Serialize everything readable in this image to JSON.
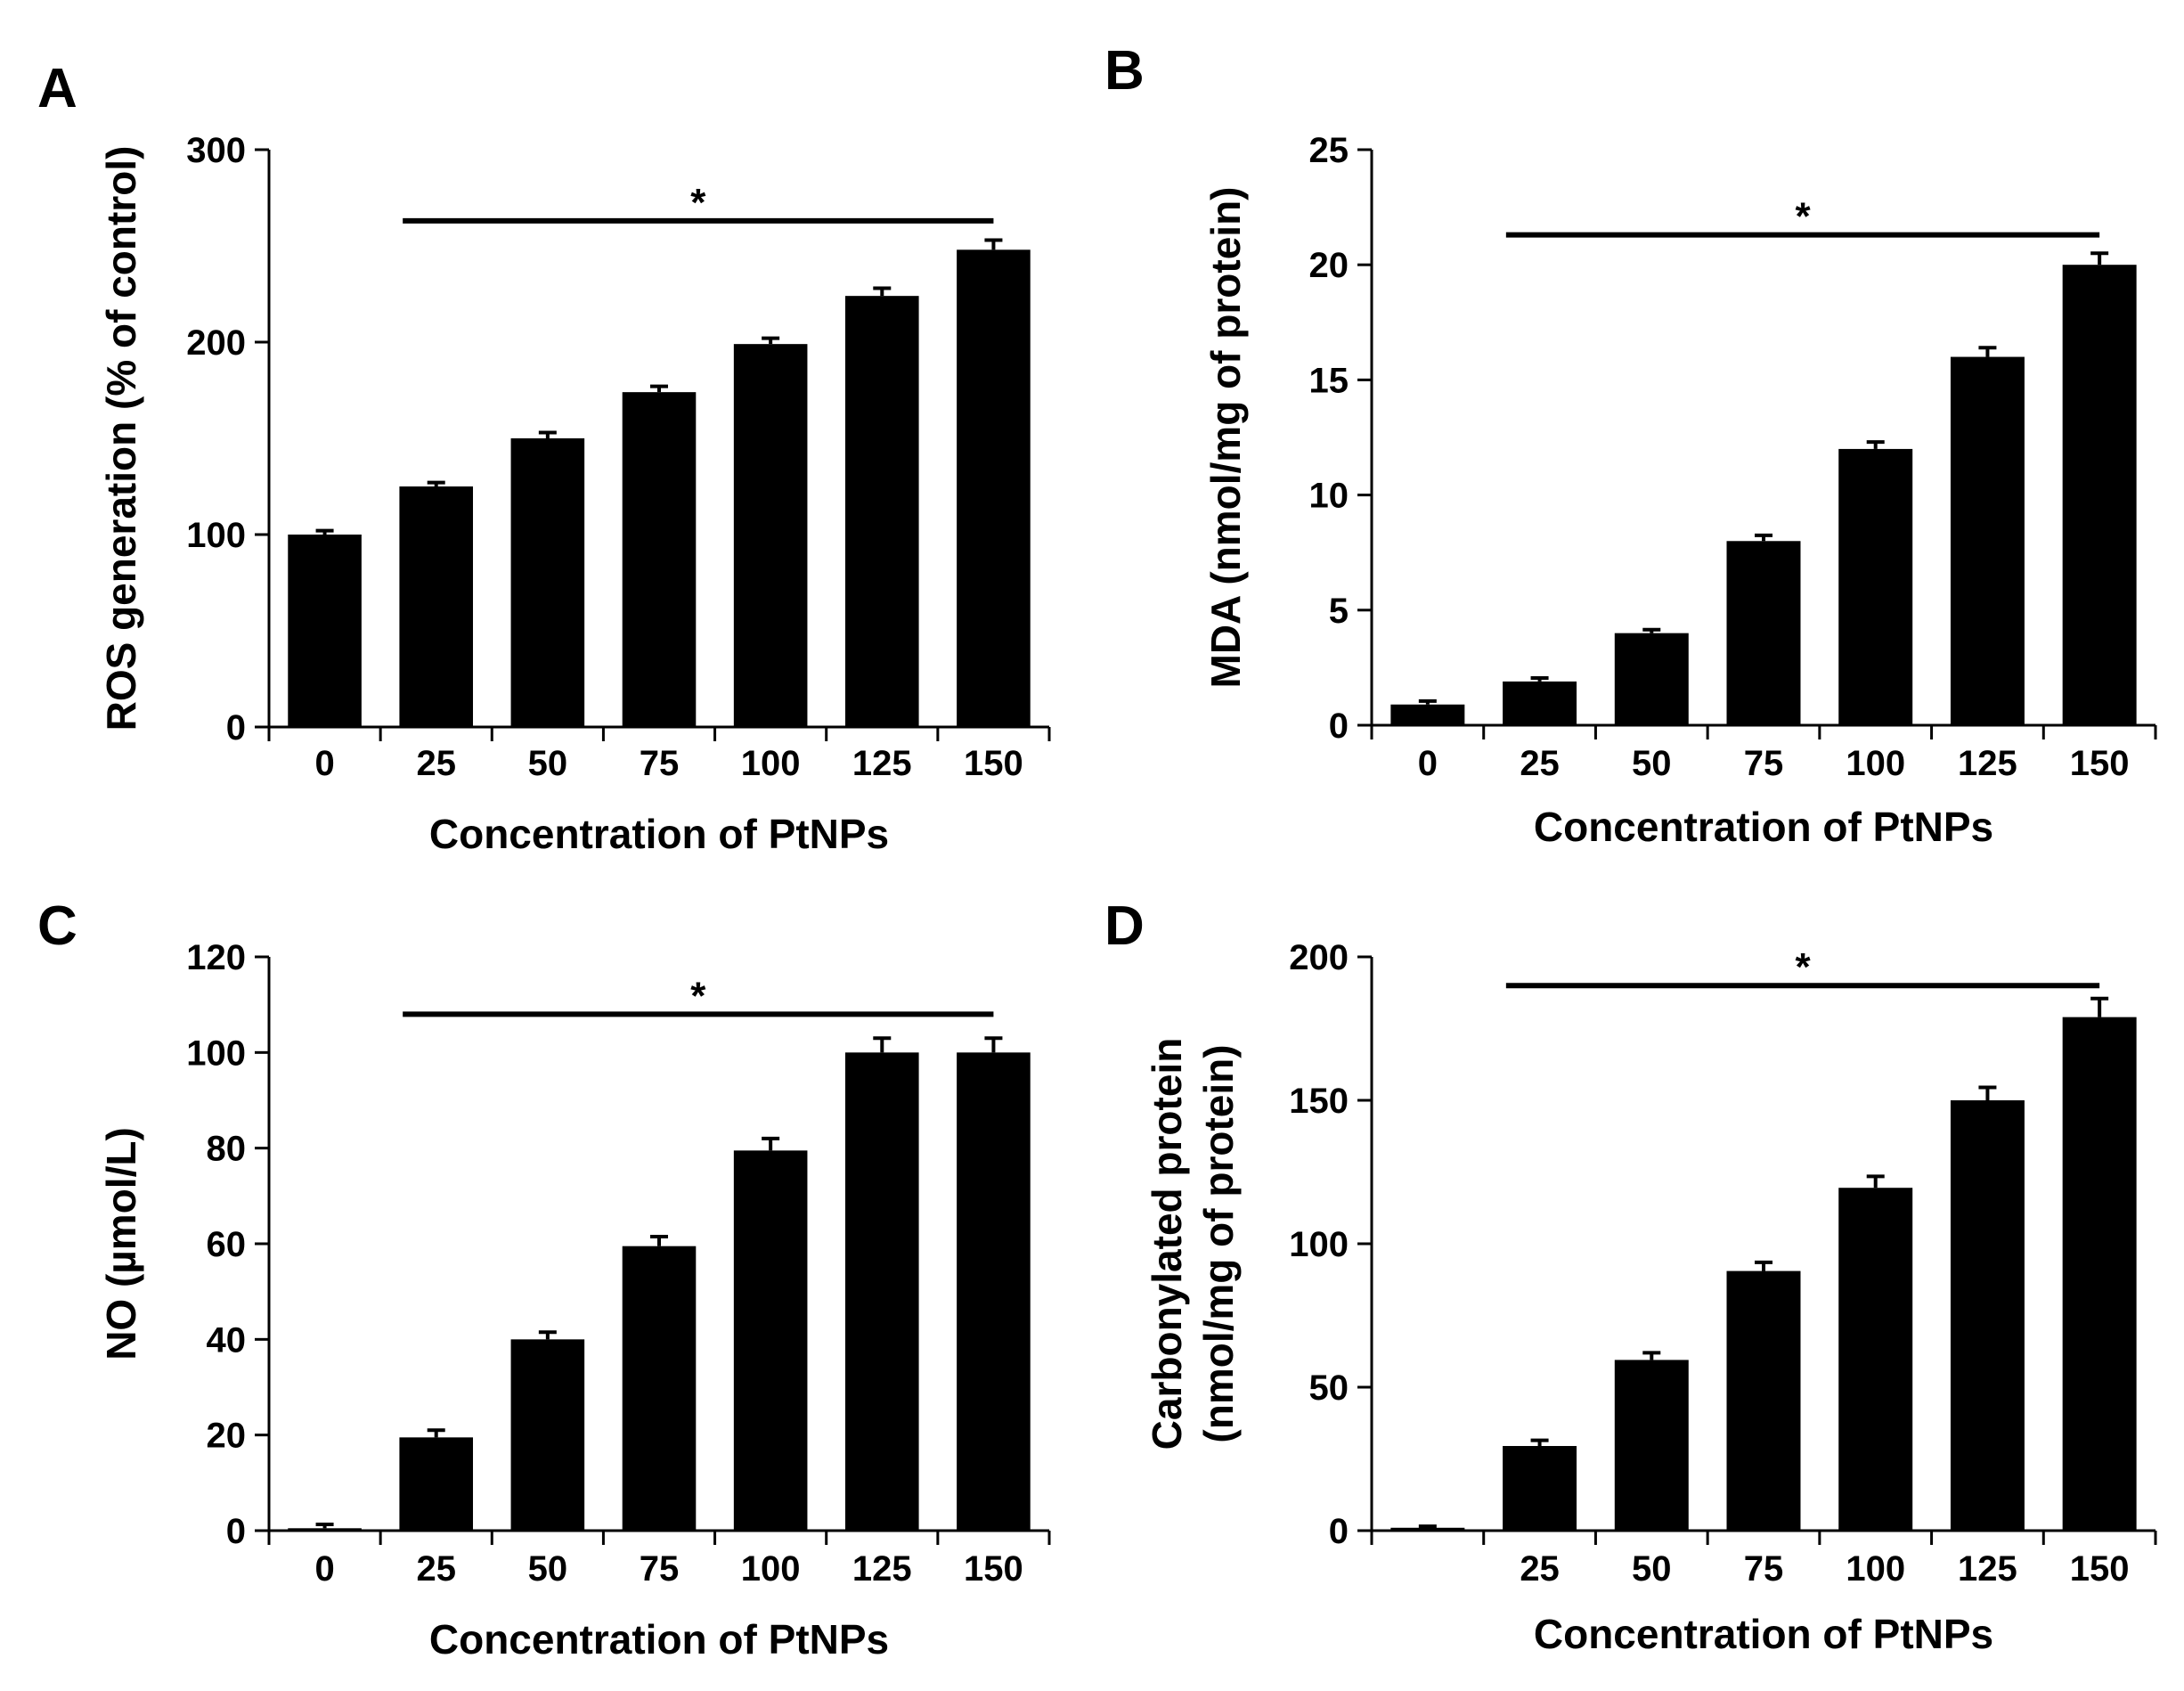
{
  "figure": {
    "colors": {
      "bar": "#000000",
      "axis": "#000000",
      "background": "#ffffff"
    }
  },
  "chart_data": [
    {
      "panel": "A",
      "type": "bar",
      "categories": [
        "0",
        "25",
        "50",
        "75",
        "100",
        "125",
        "150"
      ],
      "values": [
        100,
        125,
        150,
        174,
        199,
        224,
        248
      ],
      "errors": [
        2,
        2,
        3,
        3,
        3,
        4,
        5
      ],
      "xlabel": "Concentration of PtNPs",
      "ylabel": [
        "ROS generation (% of control)"
      ],
      "ylim": [
        0,
        300
      ],
      "yticks": [
        "0",
        "100",
        "200",
        "300"
      ],
      "significance": {
        "from": "25",
        "to": "150",
        "symbol": "*",
        "y": 263
      }
    },
    {
      "panel": "B",
      "type": "bar",
      "categories": [
        "0",
        "25",
        "50",
        "75",
        "100",
        "125",
        "150"
      ],
      "values": [
        0.9,
        1.9,
        4.0,
        8.0,
        12.0,
        16.0,
        20.0
      ],
      "errors": [
        0.15,
        0.15,
        0.15,
        0.25,
        0.3,
        0.4,
        0.5
      ],
      "xlabel": "Concentration of PtNPs",
      "ylabel": [
        "MDA (nmol/mg of protein)"
      ],
      "ylim": [
        0,
        25
      ],
      "yticks": [
        "0",
        "5",
        "10",
        "15",
        "20",
        "25"
      ],
      "significance": {
        "from": "25",
        "to": "150",
        "symbol": "*",
        "y": 21.3
      }
    },
    {
      "panel": "C",
      "type": "bar",
      "categories": [
        "0",
        "25",
        "50",
        "75",
        "100",
        "125",
        "150"
      ],
      "values": [
        0.5,
        19.5,
        40,
        59.5,
        79.5,
        100,
        100
      ],
      "errors": [
        0.8,
        1.5,
        1.5,
        2,
        2.5,
        3,
        3
      ],
      "xlabel": "Concentration of PtNPs",
      "ylabel": [
        "NO (µmol/L)"
      ],
      "ylim": [
        0,
        120
      ],
      "yticks": [
        "0",
        "20",
        "40",
        "60",
        "80",
        "100",
        "120"
      ],
      "significance": {
        "from": "25",
        "to": "150",
        "symbol": "*",
        "y": 108
      }
    },
    {
      "panel": "D",
      "type": "bar",
      "categories": [
        "",
        "25",
        "50",
        "75",
        "100",
        "125",
        "150"
      ],
      "values": [
        1,
        29.5,
        59.5,
        90.5,
        119.5,
        150,
        179
      ],
      "errors": [
        0.5,
        2,
        2.5,
        3,
        4,
        4.5,
        6.5
      ],
      "xlabel": "Concentration of PtNPs",
      "ylabel": [
        "Carbonylated protein",
        "(nmol/mg of protein)"
      ],
      "ylim": [
        0,
        200
      ],
      "yticks": [
        "0",
        "50",
        "100",
        "150",
        "200"
      ],
      "significance": {
        "from": "25",
        "to": "150",
        "symbol": "*",
        "y": 190
      }
    }
  ]
}
